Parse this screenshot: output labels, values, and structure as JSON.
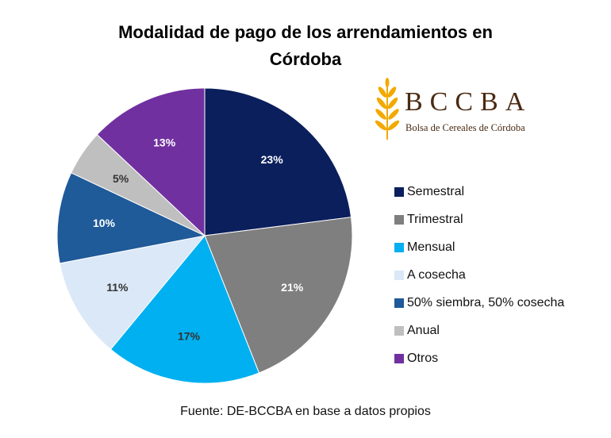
{
  "chart_data": {
    "type": "pie",
    "title_lines": [
      "Modalidad de pago de los arrendamientos en",
      "Córdoba"
    ],
    "categories": [
      "Semestral",
      "Trimestral",
      "Mensual",
      "A cosecha",
      "50% siembra, 50% cosecha",
      "Anual",
      "Otros"
    ],
    "values": [
      23,
      21,
      17,
      11,
      10,
      5,
      13
    ],
    "value_labels": [
      "23%",
      "21%",
      "17%",
      "11%",
      "10%",
      "5%",
      "13%"
    ],
    "colors": [
      "#0b1f5c",
      "#7f7f7f",
      "#00b0f0",
      "#dae8f7",
      "#1f5a99",
      "#bfbfbf",
      "#7030a0"
    ],
    "label_colors": [
      "#ffffff",
      "#ffffff",
      "#333333",
      "#333333",
      "#ffffff",
      "#333333",
      "#ffffff"
    ],
    "start_angle_deg": 0,
    "direction": "clockwise",
    "legend_placement": "right",
    "source": "Fuente: DE-BCCBA en base a datos propios"
  },
  "logo": {
    "wordmark": "BCCBA",
    "subtitle": "Bolsa de Cereales de Córdoba",
    "icon": "wheat-icon",
    "color": "#4a2a12",
    "accent": "#f2a900"
  }
}
